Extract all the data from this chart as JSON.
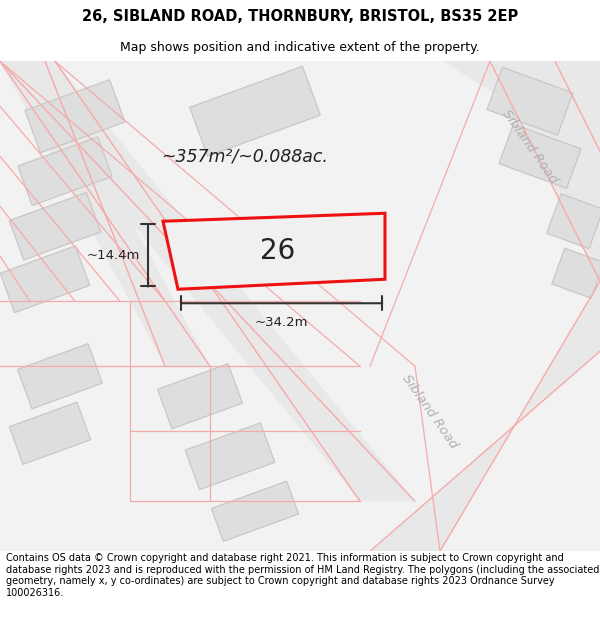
{
  "title": "26, SIBLAND ROAD, THORNBURY, BRISTOL, BS35 2EP",
  "subtitle": "Map shows position and indicative extent of the property.",
  "footer": "Contains OS data © Crown copyright and database right 2021. This information is subject to Crown copyright and database rights 2023 and is reproduced with the permission of HM Land Registry. The polygons (including the associated geometry, namely x, y co-ordinates) are subject to Crown copyright and database rights 2023 Ordnance Survey 100026316.",
  "area_text": "~357m²/~0.088ac.",
  "number_text": "26",
  "width_text": "~34.2m",
  "height_text": "~14.4m",
  "road_label_1": "Sibland Road",
  "road_label_2": "Sibland Road",
  "map_bg": "#f2f2f2",
  "road_fill": "#e8e8e8",
  "road_line": "#f5aaaa",
  "building_fill": "#dedede",
  "building_line": "#c8c8c8",
  "prop_fill": "#f0f0f0",
  "prop_line": "#ee1111",
  "meas_color": "#333333",
  "road_label_color": "#b0b0b0",
  "text_color": "#222222"
}
